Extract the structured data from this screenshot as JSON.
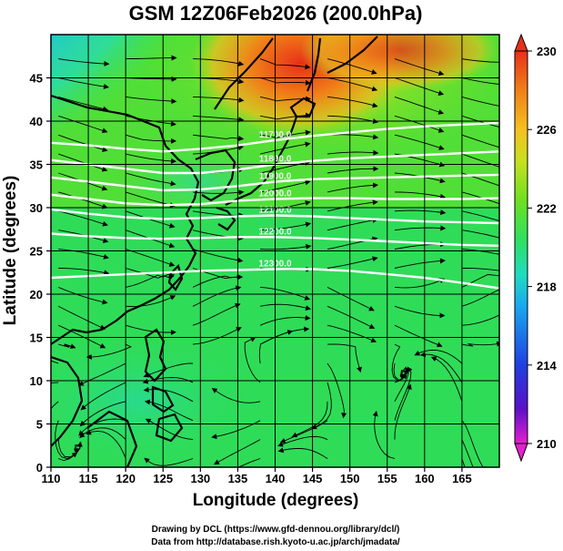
{
  "chart_data": {
    "type": "heatmap",
    "title": "GSM 12Z06Feb2026 (200.0hPa)",
    "xlabel": "Longitude (degrees)",
    "ylabel": "Latitude  (degrees)",
    "xlim": [
      110,
      170
    ],
    "ylim": [
      0,
      50
    ],
    "x_ticks": [
      "110",
      "115",
      "120",
      "125",
      "130",
      "135",
      "140",
      "145",
      "150",
      "155",
      "160",
      "165"
    ],
    "y_ticks": [
      "0",
      "5",
      "10",
      "15",
      "20",
      "25",
      "30",
      "35",
      "40",
      "45"
    ],
    "grid": true,
    "field": "temperature (shaded) with wind streamlines and height contours",
    "colorbar": {
      "min": 210,
      "max": 230,
      "ticks": [
        "210",
        "214",
        "218",
        "222",
        "226",
        "230"
      ],
      "colors": [
        "#e61fd0",
        "#3a10c8",
        "#1f5fe8",
        "#19b8f0",
        "#20dcc0",
        "#2ee060",
        "#7ae020",
        "#d8e020",
        "#f5b020",
        "#f07018",
        "#e83018"
      ]
    },
    "contours": [
      {
        "label": "11700.0",
        "lat_values": [
          37.5,
          37.2,
          36.8,
          36.5,
          36.8,
          37.2,
          37.8,
          38.3,
          38.7,
          39.1,
          39.4,
          39.6,
          39.8
        ]
      },
      {
        "label": "11800.0",
        "lat_values": [
          35.5,
          35.0,
          34.5,
          34.0,
          34.0,
          34.4,
          35.0,
          35.4,
          35.7,
          35.9,
          36.1,
          36.3,
          36.5
        ]
      },
      {
        "label": "11900.0",
        "lat_values": [
          33.5,
          33.0,
          32.5,
          32.0,
          32.1,
          32.5,
          33.0,
          33.3,
          33.4,
          33.5,
          33.6,
          33.7,
          33.8
        ]
      },
      {
        "label": "12000.0",
        "lat_values": [
          31.5,
          31.0,
          30.5,
          30.3,
          30.4,
          30.8,
          31.0,
          31.1,
          31.1,
          31.0,
          31.0,
          31.0,
          31.1
        ]
      },
      {
        "label": "12100.0",
        "lat_values": [
          29.8,
          29.3,
          28.9,
          28.7,
          28.8,
          29.0,
          29.1,
          29.0,
          28.8,
          28.6,
          28.4,
          28.3,
          28.2
        ]
      },
      {
        "label": "12200.0",
        "lat_values": [
          27.0,
          26.7,
          26.5,
          26.4,
          26.5,
          26.6,
          26.6,
          26.5,
          26.3,
          26.1,
          25.9,
          25.7,
          25.6
        ]
      },
      {
        "label": "12300.0",
        "lat_values": [
          21.9,
          22.1,
          22.3,
          22.5,
          22.7,
          22.8,
          22.9,
          22.9,
          22.7,
          22.3,
          21.9,
          21.3,
          20.7
        ]
      }
    ],
    "credits": [
      "Drawing by DCL (https://www.gfd-dennou.org/library/dcl/)",
      "Data from http://database.rish.kyoto-u.ac.jp/arch/jmadata/"
    ]
  }
}
